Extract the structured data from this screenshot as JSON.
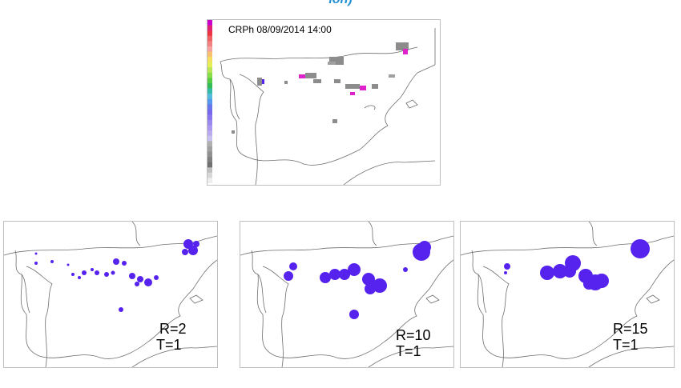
{
  "page": {
    "title": "ion)"
  },
  "main_panel": {
    "caption": "CRPh 08/09/2014 14:00",
    "colorbar_colors": [
      "#cc00cc",
      "#dd2277",
      "#ee3344",
      "#f06060",
      "#f38080",
      "#f6a0a0",
      "#f8c070",
      "#f5dd60",
      "#e6ee55",
      "#b8e655",
      "#88dd44",
      "#55cc44",
      "#33bb55",
      "#33bbaa",
      "#55bbdd",
      "#5599ee",
      "#6677ee",
      "#7766ee",
      "#8877ee",
      "#9988ee",
      "#aa99ee",
      "#bbaaee",
      "#c8c0f0",
      "#b0b0b0",
      "#a0a0a0",
      "#909090",
      "#808080",
      "#707070",
      "#c0c0c0",
      "#d8d8d8",
      "#eeeeee"
    ]
  },
  "panels": [
    {
      "label_r": "R=2",
      "label_t": "T=1"
    },
    {
      "label_r": "R=10",
      "label_t": "T=1"
    },
    {
      "label_r": "R=15",
      "label_t": "T=1"
    }
  ],
  "colors": {
    "blob": "#5522ee",
    "radar_gray": "#8c8c8c",
    "radar_magenta": "#dd22cc",
    "coast": "#6d6d6d"
  }
}
